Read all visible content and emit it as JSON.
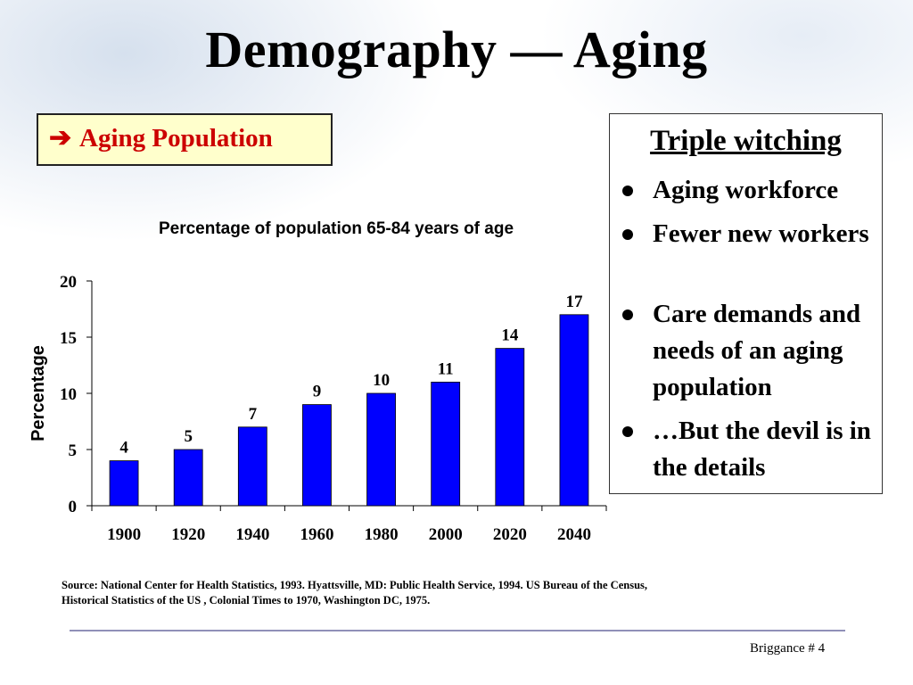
{
  "slide": {
    "title": "Demography — Aging",
    "callout_label": "Aging Population",
    "footer": "Briggance # 4"
  },
  "sidebar": {
    "title": "Triple witching",
    "items": [
      "Aging workforce",
      "Fewer new workers",
      "Care demands and needs of an aging population",
      "…But the devil is in the details"
    ]
  },
  "source": {
    "line1": "Source: National Center for Health Statistics, 1993. Hyattsville, MD: Public Health Service, 1994. US Bureau of the Census,",
    "line2": "Historical Statistics of the US , Colonial Times to 1970, Washington DC, 1975."
  },
  "colors": {
    "bar": "#0000ff",
    "callout_text": "#cc0000",
    "callout_fill": "#ffffcc"
  },
  "icons": {
    "callout_arrow": "right-arrow-icon"
  },
  "chart_data": {
    "type": "bar",
    "title": "Percentage of population 65-84 years of age",
    "xlabel": "",
    "ylabel": "Percentage",
    "categories": [
      "1900",
      "1920",
      "1940",
      "1960",
      "1980",
      "2000",
      "2020",
      "2040"
    ],
    "values": [
      4,
      5,
      7,
      9,
      10,
      11,
      14,
      17
    ],
    "ylim": [
      0,
      20
    ],
    "yticks": [
      0,
      5,
      10,
      15,
      20
    ],
    "data_labels": true,
    "grid": false,
    "legend": "none"
  }
}
